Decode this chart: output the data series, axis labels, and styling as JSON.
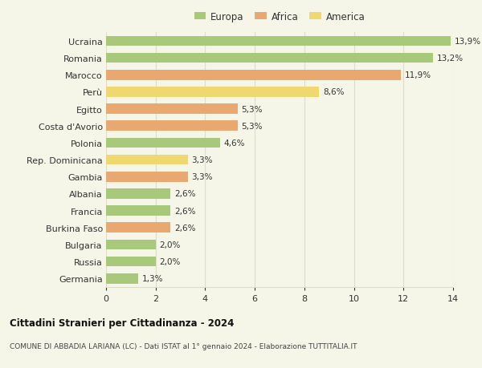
{
  "countries": [
    "Ucraina",
    "Romania",
    "Marocco",
    "Perù",
    "Egitto",
    "Costa d'Avorio",
    "Polonia",
    "Rep. Dominicana",
    "Gambia",
    "Albania",
    "Francia",
    "Burkina Faso",
    "Bulgaria",
    "Russia",
    "Germania"
  ],
  "values": [
    13.9,
    13.2,
    11.9,
    8.6,
    5.3,
    5.3,
    4.6,
    3.3,
    3.3,
    2.6,
    2.6,
    2.6,
    2.0,
    2.0,
    1.3
  ],
  "labels": [
    "13,9%",
    "13,2%",
    "11,9%",
    "8,6%",
    "5,3%",
    "5,3%",
    "4,6%",
    "3,3%",
    "3,3%",
    "2,6%",
    "2,6%",
    "2,6%",
    "2,0%",
    "2,0%",
    "1,3%"
  ],
  "continents": [
    "Europa",
    "Europa",
    "Africa",
    "America",
    "Africa",
    "Africa",
    "Europa",
    "America",
    "Africa",
    "Europa",
    "Europa",
    "Africa",
    "Europa",
    "Europa",
    "Europa"
  ],
  "colors": {
    "Europa": "#a8c87a",
    "Africa": "#e8a870",
    "America": "#f0d870"
  },
  "legend_order": [
    "Europa",
    "Africa",
    "America"
  ],
  "xlim": [
    0,
    14
  ],
  "xticks": [
    0,
    2,
    4,
    6,
    8,
    10,
    12,
    14
  ],
  "title": "Cittadini Stranieri per Cittadinanza - 2024",
  "subtitle": "COMUNE DI ABBADIA LARIANA (LC) - Dati ISTAT al 1° gennaio 2024 - Elaborazione TUTTITALIA.IT",
  "background_color": "#f5f5e8",
  "grid_color": "#ddddcc",
  "bar_height": 0.6
}
